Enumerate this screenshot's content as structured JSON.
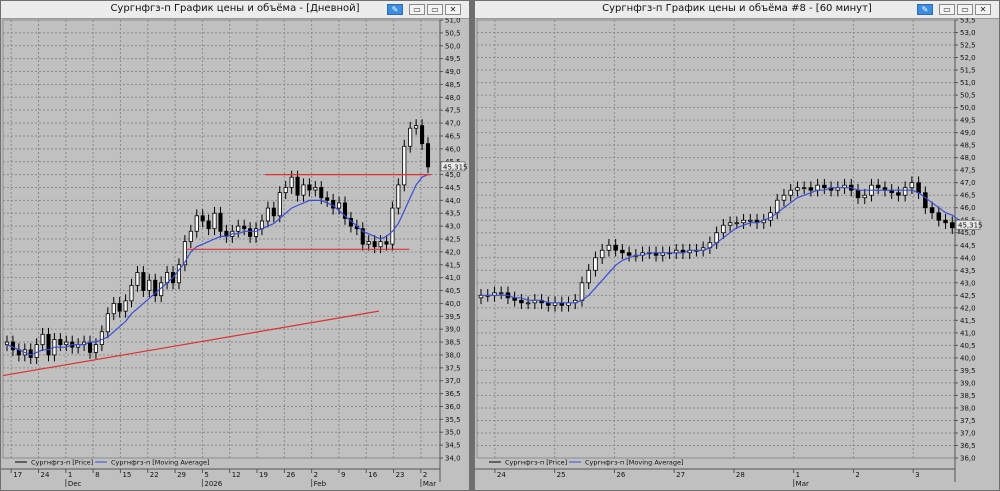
{
  "windows": [
    {
      "title": "Сургнфгз-п График цены и объёма - [Дневной]",
      "legend": {
        "price": "Сургнфгз-п [Price]",
        "ma": "Сургнфгз-п [Moving Average]"
      },
      "last_price_label": "45,315"
    },
    {
      "title": "Сургнфгз-п График цены и объёма #8 - [60 минут]",
      "legend": {
        "price": "Сургнфгз-п [Price]",
        "ma": "Сургнфгз-п [Moving Average]"
      },
      "last_price_label": "45,315"
    }
  ],
  "colors": {
    "up": "#ffffff",
    "down": "#000000",
    "ma": "#3a4dd8",
    "trend": "#e03030",
    "bg": "#c0c0c0"
  },
  "chart_data": [
    {
      "type": "line",
      "title": "Сургнфгз-п График цены и объёма - [Дневной]",
      "ylim": [
        34.0,
        51.0
      ],
      "yticks": [
        "51,0",
        "50,5",
        "50,0",
        "49,5",
        "49,0",
        "48,5",
        "48,0",
        "47,5",
        "47,0",
        "46,5",
        "46,0",
        "45,5",
        "45,0",
        "44,5",
        "44,0",
        "43,5",
        "43,0",
        "42,5",
        "42,0",
        "41,5",
        "41,0",
        "40,5",
        "40,0",
        "39,5",
        "39,0",
        "38,5",
        "38,0",
        "37,5",
        "37,0",
        "36,5",
        "36,0",
        "35,5",
        "35,0",
        "34,5",
        "34,0"
      ],
      "xticks": [
        "17",
        "24",
        "1",
        "8",
        "15",
        "22",
        "29",
        "5",
        "12",
        "19",
        "26",
        "2",
        "9",
        "16",
        "23",
        "2"
      ],
      "xticks_month": [
        {
          "label": "Dec",
          "at": "1"
        },
        {
          "label": "2026",
          "at": "5"
        },
        {
          "label": "Feb",
          "at": "2"
        },
        {
          "label": "Mar",
          "at": "2"
        }
      ],
      "series": [
        {
          "name": "Сургнфгз-п [Price]",
          "closes": [
            38.5,
            38.2,
            38.0,
            38.2,
            37.9,
            38.4,
            38.8,
            38.0,
            38.6,
            38.4,
            38.5,
            38.3,
            38.4,
            38.5,
            38.1,
            38.4,
            38.9,
            39.6,
            40.0,
            39.7,
            40.1,
            40.7,
            41.2,
            40.5,
            40.9,
            40.3,
            40.8,
            41.2,
            40.8,
            41.5,
            42.4,
            42.8,
            43.4,
            43.2,
            42.9,
            43.5,
            42.8,
            42.6,
            42.8,
            43.0,
            42.9,
            42.6,
            42.9,
            43.2,
            43.7,
            43.4,
            44.3,
            44.5,
            44.9,
            44.2,
            44.6,
            44.4,
            44.5,
            44.1,
            44.0,
            43.7,
            43.9,
            43.3,
            43.0,
            42.9,
            42.3,
            42.4,
            42.2,
            42.4,
            42.3,
            43.7,
            44.6,
            46.1,
            46.8,
            46.9,
            46.2,
            45.3
          ]
        },
        {
          "name": "Сургнфгз-п [Moving Average]",
          "values": [
            38.4,
            38.3,
            38.2,
            38.1,
            38.0,
            38.1,
            38.2,
            38.2,
            38.3,
            38.3,
            38.3,
            38.4,
            38.4,
            38.4,
            38.5,
            38.5,
            38.6,
            38.7,
            38.9,
            39.1,
            39.3,
            39.6,
            39.8,
            40.0,
            40.2,
            40.4,
            40.6,
            40.8,
            41.0,
            41.3,
            41.6,
            42.0,
            42.2,
            42.3,
            42.4,
            42.5,
            42.6,
            42.6,
            42.7,
            42.7,
            42.8,
            42.8,
            42.8,
            42.9,
            43.0,
            43.1,
            43.3,
            43.5,
            43.7,
            43.8,
            43.9,
            44.0,
            44.0,
            44.0,
            43.9,
            43.8,
            43.6,
            43.4,
            43.2,
            43.0,
            42.8,
            42.7,
            42.6,
            42.5,
            42.6,
            42.8,
            43.1,
            43.6,
            44.1,
            44.6,
            44.9,
            45.0
          ]
        }
      ],
      "lines": [
        {
          "name": "support",
          "y": 42.1,
          "x0": 0.42,
          "x1": 0.93
        },
        {
          "name": "resistance",
          "y": 45.0,
          "x0": 0.6,
          "x1": 0.98
        },
        {
          "name": "trendline",
          "from": [
            0,
            37.2
          ],
          "to": [
            0.86,
            39.7
          ]
        }
      ]
    },
    {
      "type": "line",
      "title": "Сургнфгз-п График цены и объёма #8 - [60 минут]",
      "ylim": [
        36.0,
        53.5
      ],
      "yticks": [
        "53,5",
        "53,0",
        "52,5",
        "52,0",
        "51,5",
        "51,0",
        "50,5",
        "50,0",
        "49,5",
        "49,0",
        "48,5",
        "48,0",
        "47,5",
        "47,0",
        "46,5",
        "46,0",
        "45,5",
        "45,0",
        "44,5",
        "44,0",
        "43,5",
        "43,0",
        "42,5",
        "42,0",
        "41,5",
        "41,0",
        "40,5",
        "40,0",
        "39,5",
        "39,0",
        "38,5",
        "38,0",
        "37,5",
        "37,0",
        "36,5",
        "36,0"
      ],
      "xticks": [
        "24",
        "25",
        "26",
        "27",
        "28",
        "1",
        "2",
        "3"
      ],
      "xticks_month": [
        {
          "label": "Mar",
          "at": "1"
        }
      ],
      "series": [
        {
          "name": "Сургнфгз-п [Price]",
          "closes": [
            42.5,
            42.5,
            42.6,
            42.6,
            42.4,
            42.3,
            42.2,
            42.2,
            42.3,
            42.2,
            42.1,
            42.2,
            42.1,
            42.2,
            42.3,
            43.0,
            43.5,
            44.0,
            44.3,
            44.5,
            44.3,
            44.2,
            44.1,
            44.1,
            44.2,
            44.2,
            44.1,
            44.2,
            44.2,
            44.3,
            44.2,
            44.3,
            44.3,
            44.4,
            44.6,
            45.0,
            45.3,
            45.4,
            45.4,
            45.5,
            45.5,
            45.4,
            45.5,
            45.8,
            46.3,
            46.5,
            46.7,
            46.8,
            46.8,
            46.7,
            46.9,
            46.8,
            46.7,
            46.8,
            46.9,
            46.7,
            46.4,
            46.5,
            46.9,
            46.8,
            46.7,
            46.6,
            46.5,
            46.8,
            47.0,
            46.6,
            46.0,
            45.8,
            45.5,
            45.4,
            45.2,
            45.3
          ]
        },
        {
          "name": "Сургнфгз-п [Moving Average]",
          "values": [
            42.5,
            42.5,
            42.5,
            42.5,
            42.5,
            42.4,
            42.4,
            42.3,
            42.3,
            42.3,
            42.2,
            42.2,
            42.2,
            42.2,
            42.2,
            42.3,
            42.5,
            42.8,
            43.1,
            43.4,
            43.7,
            43.9,
            44.0,
            44.1,
            44.1,
            44.2,
            44.2,
            44.2,
            44.2,
            44.2,
            44.2,
            44.3,
            44.3,
            44.3,
            44.4,
            44.6,
            44.8,
            45.0,
            45.2,
            45.3,
            45.4,
            45.4,
            45.5,
            45.6,
            45.8,
            46.0,
            46.2,
            46.4,
            46.5,
            46.6,
            46.7,
            46.7,
            46.8,
            46.8,
            46.8,
            46.8,
            46.7,
            46.7,
            46.7,
            46.7,
            46.7,
            46.7,
            46.7,
            46.7,
            46.7,
            46.6,
            46.4,
            46.2,
            46.0,
            45.8,
            45.7,
            45.5
          ]
        }
      ]
    }
  ]
}
